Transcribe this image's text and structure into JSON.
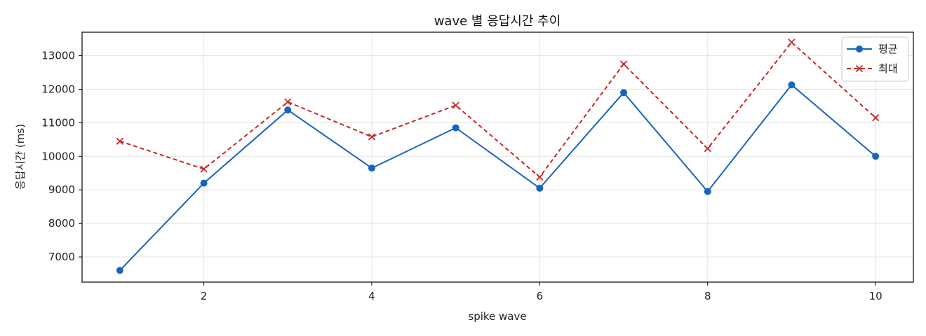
{
  "chart_data": {
    "type": "line",
    "title": "wave 별 응답시간 추이",
    "xlabel": "spike wave",
    "ylabel": "응답시간 (ms)",
    "x": [
      1,
      2,
      3,
      4,
      5,
      6,
      7,
      8,
      9,
      10
    ],
    "xlim": [
      0.55,
      10.45
    ],
    "ylim": [
      6250,
      13700
    ],
    "xticks": [
      2,
      4,
      6,
      8,
      10
    ],
    "yticks": [
      7000,
      8000,
      9000,
      10000,
      11000,
      12000,
      13000
    ],
    "grid": true,
    "legend_position": "top-right",
    "series": [
      {
        "name": "평균",
        "color": "#1565c0",
        "line_style": "solid",
        "marker": "circle",
        "values": [
          6600,
          9200,
          11380,
          9650,
          10850,
          9050,
          11900,
          8950,
          12130,
          10000
        ]
      },
      {
        "name": "최대",
        "color": "#c62828",
        "line_style": "dashed",
        "marker": "x",
        "values": [
          10450,
          9620,
          11620,
          10580,
          11520,
          9380,
          12750,
          10230,
          13400,
          11150
        ]
      }
    ]
  }
}
